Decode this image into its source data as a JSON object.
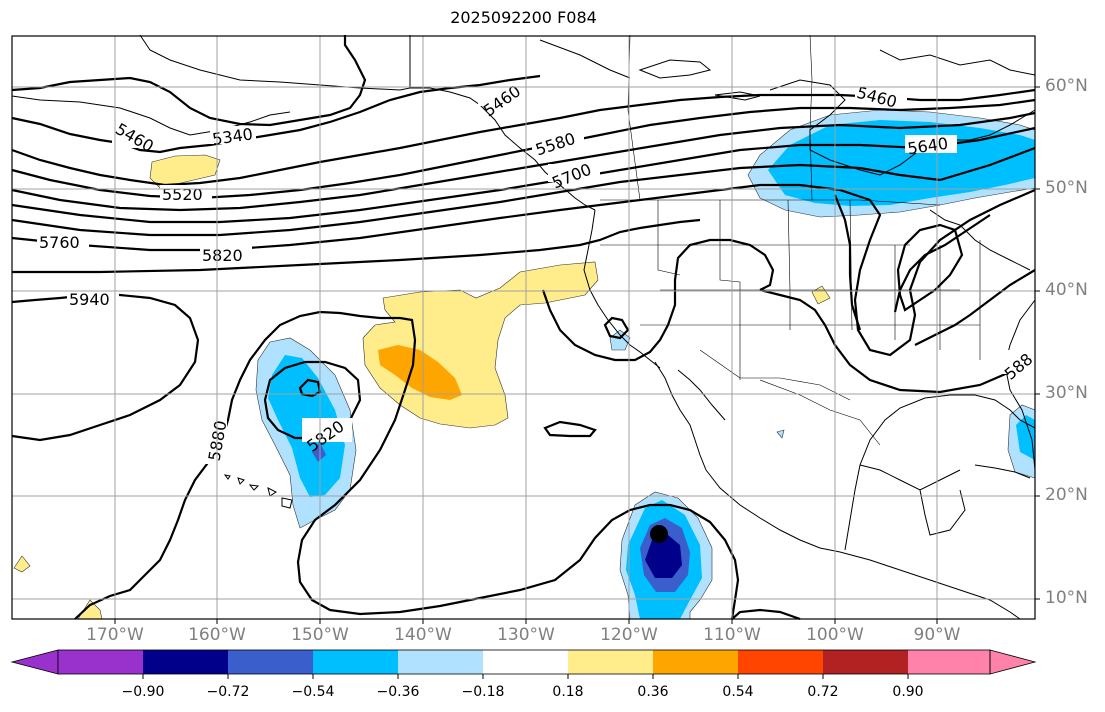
{
  "title": "2025092200 F084",
  "lat_labels": [
    "60°N",
    "50°N",
    "40°N",
    "30°N",
    "20°N",
    "10°N"
  ],
  "lon_labels": [
    "170°W",
    "160°W",
    "150°W",
    "140°W",
    "130°W",
    "120°W",
    "110°W",
    "100°W",
    "90°W"
  ],
  "contour_labels": [
    "5460",
    "5340",
    "5520",
    "5760",
    "5820",
    "5940",
    "5460",
    "5580",
    "5700",
    "5460",
    "5640",
    "5880",
    "5820",
    "588"
  ],
  "colorbar": {
    "tick_labels": [
      "−0.90",
      "−0.72",
      "−0.54",
      "−0.36",
      "−0.18",
      "0.18",
      "0.36",
      "0.54",
      "0.72",
      "0.90"
    ],
    "colors": [
      "#9932cc",
      "#00008b",
      "#3a5fcd",
      "#00bfff",
      "#b0e2ff",
      "#ffffff",
      "#ffec8b",
      "#ffa500",
      "#ff4500",
      "#b22222",
      "#ff82ab"
    ]
  },
  "colors": {
    "land": "#ffffff",
    "ocean": "#ffffff",
    "grid": "#a0a0a0",
    "contour": "#000000"
  }
}
